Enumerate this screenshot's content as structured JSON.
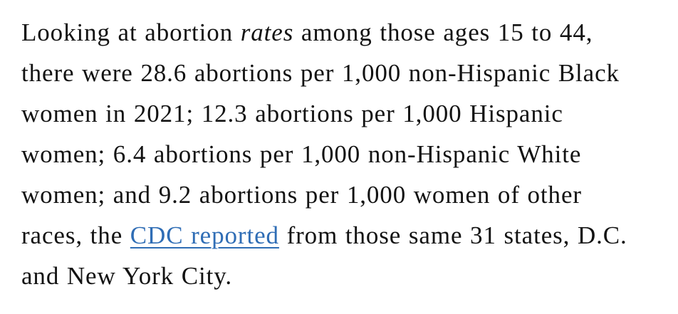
{
  "paragraph": {
    "line1_a": "Looking at abortion ",
    "line1_em": "rates",
    "line1_b": " among those ages 15 to 44,",
    "line2": "there were 28.6 abortions per 1,000 non-Hispanic Black",
    "line3": "women in 2021; 12.3 abortions per 1,000 Hispanic",
    "line4": "women; 6.4 abortions per 1,000 non-Hispanic White",
    "line5": "women; and 9.2 abortions per 1,000 women of other",
    "line6_a": "races, the ",
    "link_text": "CDC reported",
    "line6_b": " from those same 31 states, D.C.",
    "line7": "and New York City."
  },
  "colors": {
    "text": "#121212",
    "link": "#2f6db5"
  }
}
